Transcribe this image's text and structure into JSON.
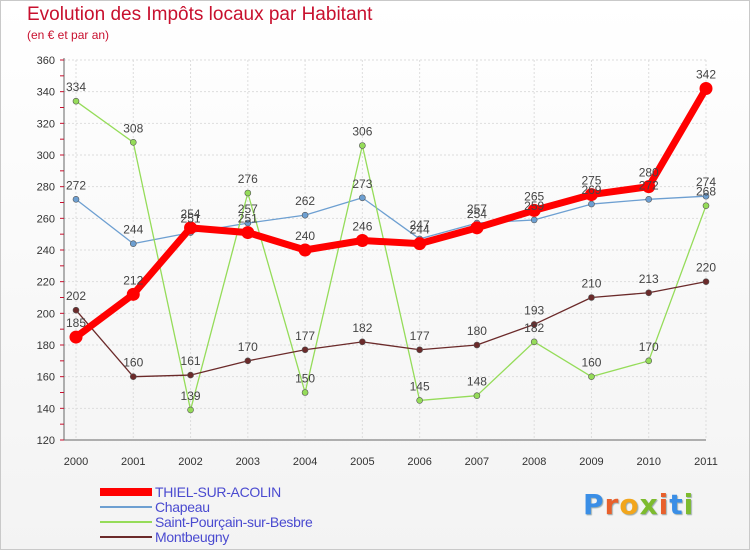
{
  "header": {
    "title": "Evolution des Impôts locaux par Habitant",
    "subtitle": "(en € et par an)"
  },
  "logo": {
    "text": "Proxiti"
  },
  "chart_data": {
    "type": "line",
    "title": "Evolution des Impôts locaux par Habitant",
    "subtitle": "(en € et par an)",
    "xlabel": "",
    "ylabel": "",
    "ylim": [
      120,
      360
    ],
    "yticks": [
      120,
      140,
      160,
      180,
      200,
      220,
      240,
      260,
      280,
      300,
      320,
      340,
      360
    ],
    "grid": true,
    "legend_position": "bottom-left",
    "categories": [
      "2000",
      "2001",
      "2002",
      "2003",
      "2004",
      "2005",
      "2006",
      "2007",
      "2008",
      "2009",
      "2010",
      "2011"
    ],
    "series": [
      {
        "name": "THIEL-SUR-ACOLIN",
        "color": "#ff0000",
        "emphasis": true,
        "values": [
          185,
          212,
          254,
          251,
          240,
          246,
          244,
          254,
          265,
          275,
          280,
          342
        ]
      },
      {
        "name": "Chapeau",
        "color": "#6d9fd1",
        "values": [
          272,
          244,
          251,
          257,
          262,
          273,
          247,
          257,
          259,
          269,
          272,
          274
        ]
      },
      {
        "name": "Saint-Pourçain-sur-Besbre",
        "color": "#95dc59",
        "values": [
          334,
          308,
          139,
          276,
          150,
          306,
          145,
          148,
          182,
          160,
          170,
          268
        ]
      },
      {
        "name": "Montbeugny",
        "color": "#6b2a2a",
        "values": [
          202,
          160,
          161,
          170,
          177,
          182,
          177,
          180,
          193,
          210,
          213,
          220
        ]
      }
    ]
  }
}
